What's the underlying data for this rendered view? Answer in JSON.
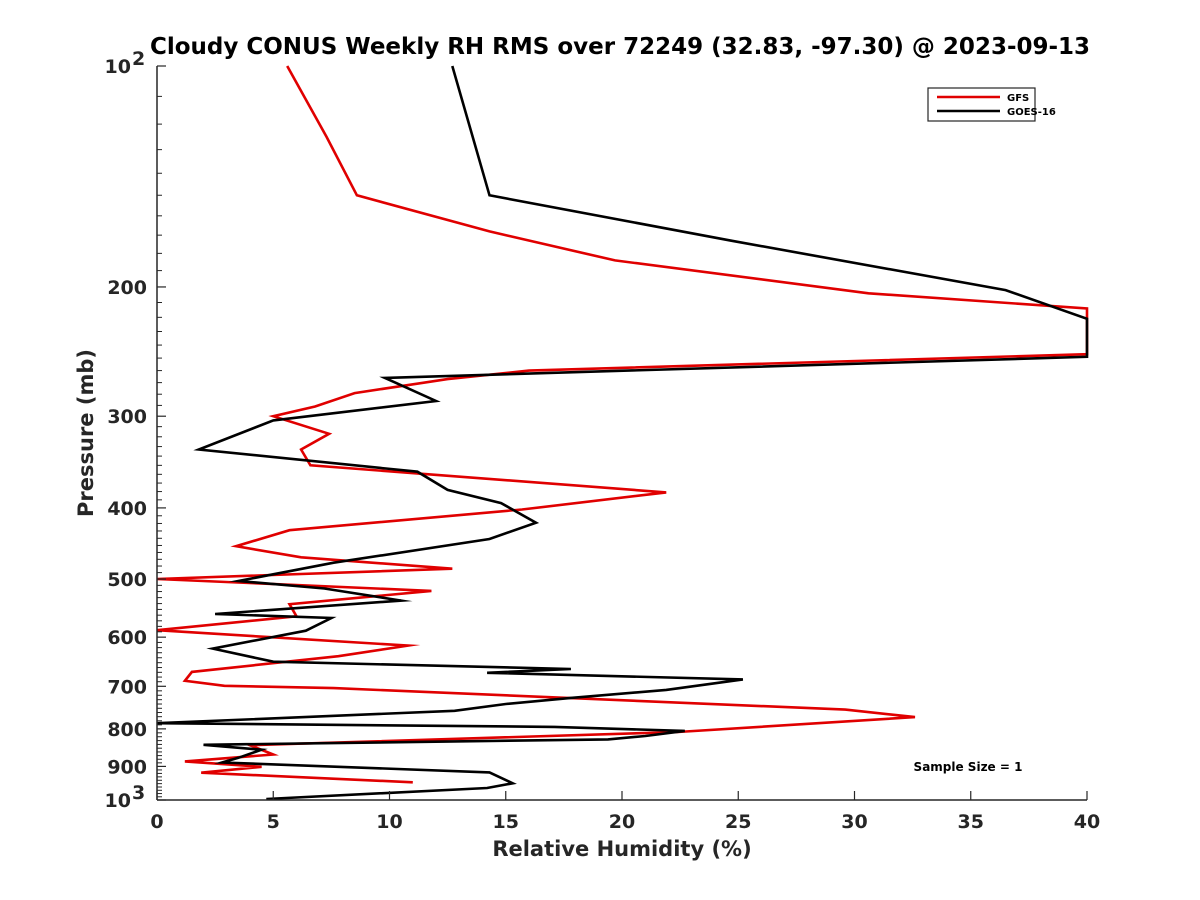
{
  "chart_data": {
    "type": "line",
    "title": "Cloudy CONUS Weekly RH RMS over 72249 (32.83, -97.30) @ 2023-09-13",
    "xlabel": "Relative Humidity (%)",
    "ylabel": "Pressure (mb)",
    "xlim": [
      0,
      40
    ],
    "ylim": [
      100,
      1000
    ],
    "yscale": "log",
    "y_reversed": true,
    "x_ticks": [
      "0",
      "5",
      "10",
      "15",
      "20",
      "25",
      "30",
      "35",
      "40"
    ],
    "y_ticks": [
      {
        "value": 100,
        "base": "10",
        "exp": "2"
      },
      {
        "value": 200,
        "label": "200"
      },
      {
        "value": 300,
        "label": "300"
      },
      {
        "value": 400,
        "label": "400"
      },
      {
        "value": 500,
        "label": "500"
      },
      {
        "value": 600,
        "label": "600"
      },
      {
        "value": 700,
        "label": "700"
      },
      {
        "value": 800,
        "label": "800"
      },
      {
        "value": 900,
        "label": "900"
      },
      {
        "value": 1000,
        "base": "10",
        "exp": "3"
      }
    ],
    "legend_position": "top-right",
    "annotation": "Sample Size = 1",
    "series": [
      {
        "name": "GFS",
        "color": "#e00000",
        "points": [
          [
            5.6,
            100
          ],
          [
            7.3,
            125
          ],
          [
            8.6,
            150
          ],
          [
            14.3,
            168
          ],
          [
            19.7,
            184
          ],
          [
            30.6,
            204
          ],
          [
            40,
            214
          ],
          [
            40,
            247
          ],
          [
            16,
            260
          ],
          [
            12.5,
            267
          ],
          [
            8.5,
            279
          ],
          [
            6.8,
            291
          ],
          [
            5,
            300
          ],
          [
            7.4,
            317
          ],
          [
            6.2,
            333
          ],
          [
            6.6,
            350
          ],
          [
            21.9,
            381
          ],
          [
            15.7,
            402
          ],
          [
            5.7,
            429
          ],
          [
            3.4,
            451
          ],
          [
            6.2,
            467
          ],
          [
            12.7,
            484
          ],
          [
            0,
            500
          ],
          [
            11.8,
            519
          ],
          [
            5.7,
            541
          ],
          [
            6.0,
            562
          ],
          [
            0,
            587
          ],
          [
            10.8,
            616
          ],
          [
            7.8,
            637
          ],
          [
            1.5,
            669
          ],
          [
            1.2,
            688
          ],
          [
            2.9,
            699
          ],
          [
            7.6,
            704
          ],
          [
            29.6,
            753
          ],
          [
            32.6,
            771
          ],
          [
            22.4,
            808
          ],
          [
            4,
            842
          ],
          [
            5,
            867
          ],
          [
            1.2,
            886
          ],
          [
            4.5,
            901
          ],
          [
            1.9,
            918
          ],
          [
            11,
            946
          ]
        ]
      },
      {
        "name": "GOES-16",
        "color": "#000000",
        "points": [
          [
            12.7,
            100
          ],
          [
            14.3,
            150
          ],
          [
            24.7,
            173
          ],
          [
            36.5,
            202
          ],
          [
            40,
            221
          ],
          [
            40,
            249
          ],
          [
            9.8,
            266
          ],
          [
            12,
            286
          ],
          [
            5,
            304
          ],
          [
            1.8,
            333
          ],
          [
            11.2,
            357
          ],
          [
            12.5,
            378
          ],
          [
            14.8,
            394
          ],
          [
            16.3,
            419
          ],
          [
            14.3,
            441
          ],
          [
            7.6,
            475
          ],
          [
            3.5,
            503
          ],
          [
            7.2,
            515
          ],
          [
            10.5,
            535
          ],
          [
            2.5,
            558
          ],
          [
            7.5,
            565
          ],
          [
            6.4,
            588
          ],
          [
            2.4,
            622
          ],
          [
            5,
            648
          ],
          [
            17.8,
            663
          ],
          [
            14.2,
            671
          ],
          [
            25.2,
            685
          ],
          [
            21.9,
            708
          ],
          [
            17.8,
            726
          ],
          [
            15,
            740
          ],
          [
            12.8,
            756
          ],
          [
            0,
            786
          ],
          [
            17.1,
            795
          ],
          [
            22.7,
            805
          ],
          [
            21,
            818
          ],
          [
            19.4,
            827
          ],
          [
            2,
            841
          ],
          [
            4.5,
            854
          ],
          [
            3.5,
            876
          ],
          [
            2.8,
            889
          ],
          [
            14.3,
            917
          ],
          [
            15.3,
            949
          ],
          [
            14.2,
            963
          ],
          [
            4.7,
            997
          ]
        ]
      }
    ]
  }
}
